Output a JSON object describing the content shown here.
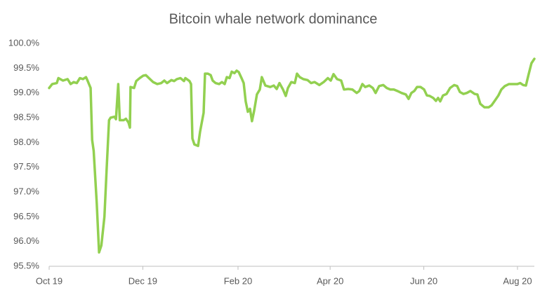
{
  "chart_data": {
    "type": "line",
    "title": "Bitcoin whale network dominance",
    "x": [
      0,
      2,
      5,
      6,
      9,
      12,
      14,
      16,
      18,
      20,
      22,
      24,
      25,
      27,
      28,
      29,
      31,
      32.5,
      34,
      36,
      37.5,
      39,
      40,
      42.5,
      43.5,
      45,
      46,
      48.5,
      50,
      51.7,
      52.6,
      53,
      55.3,
      56.7,
      59,
      61.3,
      63,
      65,
      67.7,
      70.4,
      73,
      75,
      76.8,
      79.6,
      81.4,
      83.2,
      85.5,
      87.8,
      88.7,
      91.4,
      92.4,
      93.3,
      94.6,
      97,
      98.3,
      100.6,
      101.5,
      103.3,
      105.2,
      106.5,
      108.4,
      110.7,
      112.5,
      114.3,
      115.7,
      117.5,
      118.9,
      120.7,
      122.1,
      123.5,
      125.3,
      126.7,
      128,
      129.4,
      130.8,
      132.1,
      133.5,
      135.3,
      137.2,
      138.5,
      140.8,
      144,
      146.3,
      148.2,
      150,
      152.3,
      154.1,
      155.5,
      157.7,
      160,
      161.4,
      163.2,
      165.5,
      168.3,
      170.6,
      172.9,
      176,
      178.8,
      181.5,
      183.4,
      185.2,
      187.5,
      190.2,
      192,
      194.8,
      197.5,
      200.3,
      202,
      204,
      205.8,
      208.5,
      210.8,
      212.6,
      214.9,
      217.6,
      219.9,
      222.2,
      224.5,
      226.8,
      229.5,
      232.3,
      234.1,
      235.9,
      237.8,
      239.6,
      241.9,
      244.2,
      246,
      247.8,
      250.1,
      251.9,
      253.3,
      254.7,
      256.5,
      258.8,
      261.1,
      263.8,
      265.7,
      267.5,
      269.8,
      272,
      274.3,
      277.1,
      278.9,
      280.8,
      283.5,
      286.2,
      288.1,
      290.4,
      292.6,
      294.5,
      296.8,
      299.5,
      302.3,
      305,
      306.8,
      308.7,
      310.5,
      312.3,
      314.1,
      316
    ],
    "series": [
      {
        "color": "#92d050",
        "values": [
          99.1,
          99.18,
          99.2,
          99.3,
          99.25,
          99.28,
          99.18,
          99.22,
          99.2,
          99.3,
          99.28,
          99.32,
          99.25,
          99.1,
          98.05,
          97.83,
          96.77,
          95.78,
          95.92,
          96.5,
          97.5,
          98.45,
          98.5,
          98.52,
          98.47,
          99.18,
          98.45,
          98.45,
          98.48,
          98.4,
          98.3,
          99.12,
          99.1,
          99.24,
          99.3,
          99.35,
          99.36,
          99.3,
          99.22,
          99.18,
          99.2,
          99.25,
          99.2,
          99.26,
          99.24,
          99.28,
          99.3,
          99.24,
          99.3,
          99.24,
          99.18,
          98.08,
          97.96,
          97.93,
          98.22,
          98.6,
          99.39,
          99.39,
          99.36,
          99.25,
          99.2,
          99.18,
          99.22,
          99.18,
          99.32,
          99.3,
          99.43,
          99.4,
          99.45,
          99.42,
          99.3,
          99.2,
          98.83,
          98.62,
          98.68,
          98.43,
          98.64,
          98.97,
          99.07,
          99.32,
          99.15,
          99.12,
          99.15,
          99.08,
          99.2,
          99.07,
          98.94,
          99.1,
          99.22,
          99.2,
          99.39,
          99.32,
          99.28,
          99.26,
          99.2,
          99.22,
          99.16,
          99.22,
          99.3,
          99.25,
          99.38,
          99.28,
          99.25,
          99.07,
          99.08,
          99.07,
          99.0,
          99.04,
          99.18,
          99.12,
          99.15,
          99.1,
          99.0,
          99.14,
          99.16,
          99.1,
          99.07,
          99.07,
          99.04,
          99.0,
          98.97,
          98.88,
          99.0,
          99.04,
          99.12,
          99.12,
          99.07,
          98.95,
          98.94,
          98.9,
          98.84,
          98.9,
          98.83,
          98.95,
          98.98,
          99.1,
          99.16,
          99.14,
          99.02,
          98.98,
          99.0,
          99.04,
          98.98,
          98.97,
          98.78,
          98.71,
          98.71,
          98.75,
          98.85,
          98.95,
          99.07,
          99.14,
          99.18,
          99.18,
          99.18,
          99.2,
          99.16,
          99.15,
          99.38,
          99.6,
          99.69
        ]
      }
    ],
    "xlim": [
      0,
      316
    ],
    "xticks": [
      {
        "value": 0,
        "label": "Oct 19"
      },
      {
        "value": 61,
        "label": "Dec 19"
      },
      {
        "value": 123,
        "label": "Feb 20"
      },
      {
        "value": 183,
        "label": "Apr 20"
      },
      {
        "value": 244,
        "label": "Jun 20"
      },
      {
        "value": 305,
        "label": "Aug 20"
      }
    ],
    "ylim": [
      95.5,
      100
    ],
    "yticks": [
      {
        "value": 95.5,
        "label": "95.5%"
      },
      {
        "value": 96,
        "label": "96.0%"
      },
      {
        "value": 96.5,
        "label": "96.5%"
      },
      {
        "value": 97,
        "label": "97.0%"
      },
      {
        "value": 97.5,
        "label": "97.5%"
      },
      {
        "value": 98,
        "label": "98.0%"
      },
      {
        "value": 98.5,
        "label": "98.5%"
      },
      {
        "value": 99,
        "label": "99.0%"
      },
      {
        "value": 99.5,
        "label": "99.5%"
      },
      {
        "value": 100,
        "label": "100.0%"
      }
    ],
    "grid": false
  }
}
